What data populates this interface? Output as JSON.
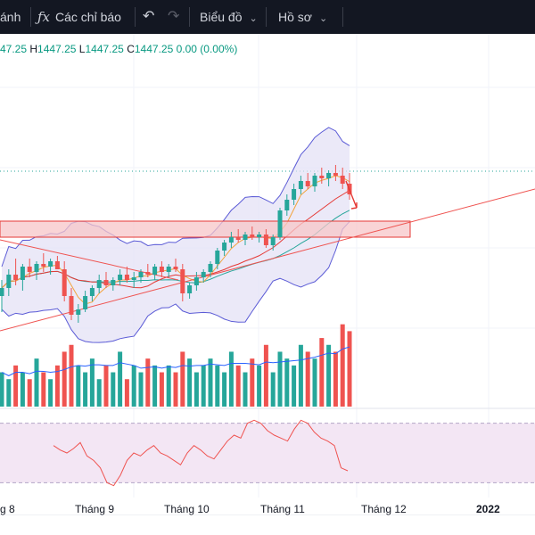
{
  "toolbar": {
    "partial_label": "ánh",
    "indicators_icon": "fx-icon",
    "indicators_label": "Các chỉ báo",
    "undo_icon": "undo-icon",
    "redo_icon": "redo-icon",
    "chart_menu_label": "Biểu đồ",
    "profile_menu_label": "Hồ sơ"
  },
  "legend": {
    "open_partial": "47.25",
    "h_key": "H",
    "h_val": "1447.25",
    "l_key": "L",
    "l_val": "1447.25",
    "c_key": "C",
    "c_val": "1447.25",
    "change": "0.00 (0.00%)"
  },
  "time_axis": [
    {
      "label": "g 8",
      "bold": false
    },
    {
      "label": "Tháng 9",
      "bold": false
    },
    {
      "label": "Tháng 10",
      "bold": false
    },
    {
      "label": "Tháng 11",
      "bold": false
    },
    {
      "label": "Tháng 12",
      "bold": false
    },
    {
      "label": "2022",
      "bold": true
    }
  ],
  "colors": {
    "up": "#26a69a",
    "down": "#ef5350",
    "bands": "#5b5bd6",
    "bands_fill": "#e3e0f5",
    "zone_fill": "#f7c5c8",
    "zone_border": "#e53935",
    "ma_short": "#f2a33a",
    "ma_mid": "#e53935",
    "trendline": "#ef5350",
    "rsi_fill": "#f3e6f4"
  },
  "chart_data": {
    "type": "candlestick",
    "note_drawings": [
      "horizontal-zone",
      "ascending-trendline",
      "arrow"
    ],
    "candles": [
      [
        12,
        18,
        6,
        15
      ],
      [
        15,
        22,
        12,
        20
      ],
      [
        20,
        26,
        16,
        18
      ],
      [
        18,
        24,
        14,
        23
      ],
      [
        23,
        26,
        19,
        21
      ],
      [
        21,
        25,
        18,
        24
      ],
      [
        24,
        28,
        21,
        23
      ],
      [
        23,
        26,
        20,
        25
      ],
      [
        25,
        27,
        22,
        22
      ],
      [
        22,
        25,
        10,
        12
      ],
      [
        12,
        15,
        3,
        5
      ],
      [
        5,
        9,
        2,
        7
      ],
      [
        7,
        14,
        6,
        12
      ],
      [
        12,
        16,
        10,
        15
      ],
      [
        15,
        20,
        13,
        18
      ],
      [
        18,
        21,
        15,
        16
      ],
      [
        16,
        19,
        14,
        18
      ],
      [
        18,
        22,
        16,
        20
      ],
      [
        20,
        23,
        17,
        18
      ],
      [
        18,
        21,
        15,
        19
      ],
      [
        19,
        22,
        17,
        21
      ],
      [
        21,
        24,
        19,
        20
      ],
      [
        20,
        24,
        18,
        23
      ],
      [
        23,
        25,
        19,
        21
      ],
      [
        21,
        24,
        19,
        23
      ],
      [
        23,
        26,
        21,
        22
      ],
      [
        22,
        24,
        10,
        13
      ],
      [
        13,
        17,
        11,
        16
      ],
      [
        16,
        21,
        14,
        19
      ],
      [
        19,
        22,
        17,
        21
      ],
      [
        21,
        25,
        19,
        24
      ],
      [
        24,
        30,
        22,
        29
      ],
      [
        29,
        33,
        27,
        32
      ],
      [
        32,
        36,
        30,
        34
      ],
      [
        34,
        37,
        32,
        33
      ],
      [
        33,
        36,
        31,
        35
      ],
      [
        35,
        38,
        33,
        34
      ],
      [
        34,
        36,
        32,
        35
      ],
      [
        35,
        37,
        30,
        31
      ],
      [
        31,
        35,
        29,
        34
      ],
      [
        34,
        45,
        33,
        44
      ],
      [
        44,
        50,
        42,
        48
      ],
      [
        48,
        54,
        46,
        52
      ],
      [
        52,
        57,
        50,
        55
      ],
      [
        55,
        58,
        52,
        53
      ],
      [
        53,
        58,
        51,
        57
      ],
      [
        57,
        60,
        54,
        56
      ],
      [
        56,
        59,
        53,
        58
      ],
      [
        58,
        61,
        55,
        57
      ],
      [
        57,
        60,
        52,
        54
      ],
      [
        54,
        58,
        48,
        50
      ]
    ],
    "volumes": [
      5,
      4,
      6,
      5,
      4,
      7,
      5,
      4,
      6,
      8,
      9,
      6,
      5,
      7,
      4,
      6,
      5,
      8,
      4,
      6,
      5,
      7,
      6,
      5,
      6,
      5,
      8,
      7,
      5,
      6,
      7,
      6,
      5,
      8,
      6,
      5,
      7,
      6,
      9,
      5,
      8,
      7,
      6,
      9,
      8,
      7,
      10,
      9,
      8,
      12,
      11
    ],
    "rsi": [
      55,
      52,
      50,
      53,
      57,
      48,
      45,
      40,
      30,
      28,
      35,
      45,
      50,
      48,
      52,
      55,
      50,
      48,
      45,
      42,
      50,
      55,
      52,
      48,
      46,
      52,
      58,
      62,
      60,
      70,
      72,
      70,
      65,
      62,
      60,
      58,
      66,
      72,
      70,
      64,
      60,
      58,
      55,
      40,
      38
    ],
    "price_range": [
      0,
      70
    ]
  }
}
